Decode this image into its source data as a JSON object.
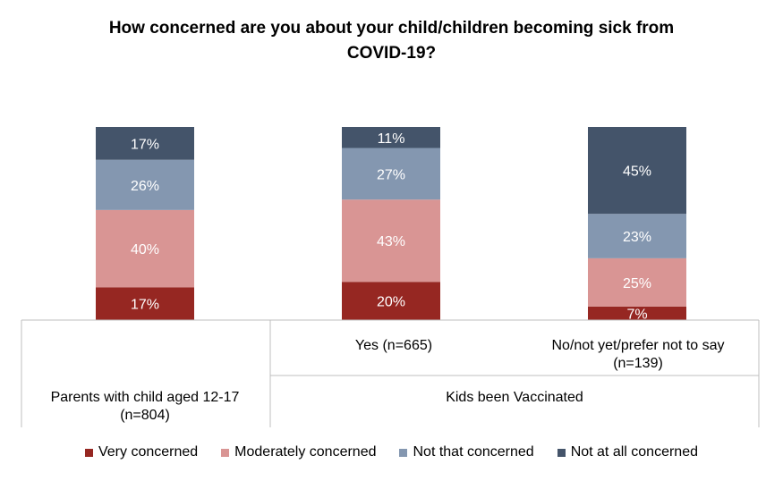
{
  "chart_data": {
    "type": "bar",
    "stacked": true,
    "percent": true,
    "title_lines": [
      "How concerned are you about your child/children becoming sick from",
      "COVID-19?"
    ],
    "categories": [
      "Parents with child aged 12-17 (n=804)",
      "Yes (n=665)",
      "No/not yet/prefer not to say (n=139)"
    ],
    "category_lines": [
      [
        "Parents with child aged 12-17",
        "(n=804)"
      ],
      [
        "Yes (n=665)"
      ],
      [
        "No/not yet/prefer not to say",
        "(n=139)"
      ]
    ],
    "group_label": "Kids been Vaccinated",
    "series": [
      {
        "name": "Very concerned",
        "color": "#962722",
        "values": [
          17,
          20,
          7
        ],
        "labels": [
          "17%",
          "20%",
          "7%"
        ]
      },
      {
        "name": "Moderately concerned",
        "color": "#D99594",
        "values": [
          40,
          43,
          25
        ],
        "labels": [
          "40%",
          "43%",
          "25%"
        ]
      },
      {
        "name": "Not that concerned",
        "color": "#8497B0",
        "values": [
          26,
          27,
          23
        ],
        "labels": [
          "26%",
          "27%",
          "23%"
        ]
      },
      {
        "name": "Not at all concerned",
        "color": "#44546A",
        "values": [
          17,
          11,
          45
        ],
        "labels": [
          "17%",
          "11%",
          "45%"
        ]
      }
    ],
    "legend_position": "bottom"
  }
}
